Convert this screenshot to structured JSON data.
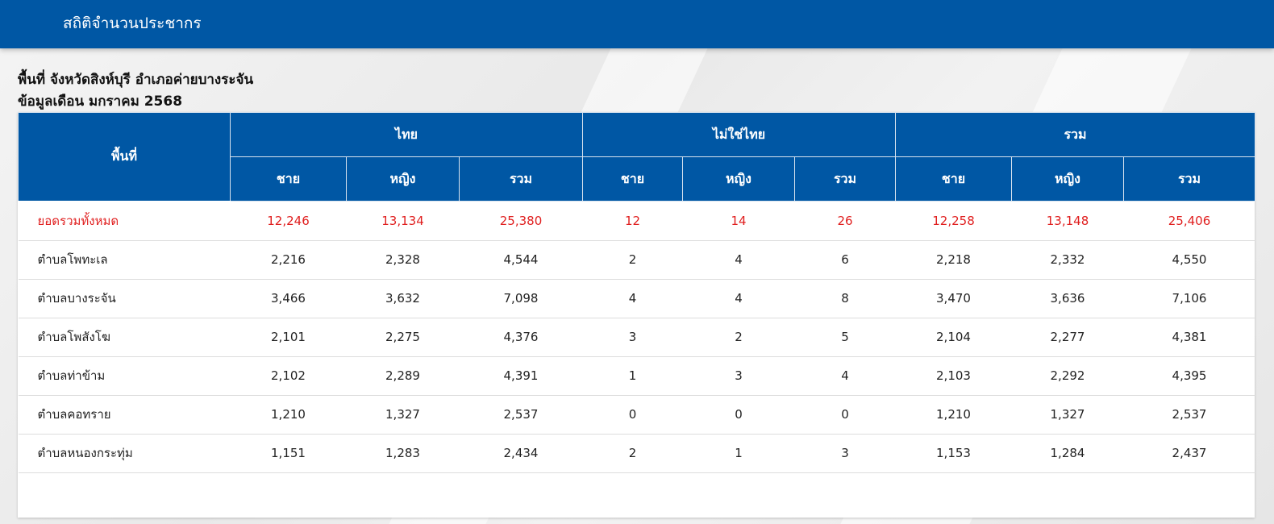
{
  "header": {
    "title": "สถิติจำนวนประชากร",
    "bar_color": "#0057a4"
  },
  "info": {
    "area_line": "พื้นที่ จังหวัดสิงห์บุรี อำเภอค่ายบางระจัน",
    "month_line": "ข้อมูลเดือน มกราคม 2568"
  },
  "table": {
    "area_header": "พื้นที่",
    "groups": [
      "ไทย",
      "ไม่ใช่ไทย",
      "รวม"
    ],
    "subheaders": [
      "ชาย",
      "หญิง",
      "รวม"
    ],
    "total_color": "#e01e1e",
    "rows": [
      {
        "name": "ยอดรวมทั้งหมด",
        "values": [
          "12,246",
          "13,134",
          "25,380",
          "12",
          "14",
          "26",
          "12,258",
          "13,148",
          "25,406"
        ]
      },
      {
        "name": "ตำบลโพทะเล",
        "values": [
          "2,216",
          "2,328",
          "4,544",
          "2",
          "4",
          "6",
          "2,218",
          "2,332",
          "4,550"
        ]
      },
      {
        "name": "ตำบลบางระจัน",
        "values": [
          "3,466",
          "3,632",
          "7,098",
          "4",
          "4",
          "8",
          "3,470",
          "3,636",
          "7,106"
        ]
      },
      {
        "name": "ตำบลโพสังโฆ",
        "values": [
          "2,101",
          "2,275",
          "4,376",
          "3",
          "2",
          "5",
          "2,104",
          "2,277",
          "4,381"
        ]
      },
      {
        "name": "ตำบลท่าข้าม",
        "values": [
          "2,102",
          "2,289",
          "4,391",
          "1",
          "3",
          "4",
          "2,103",
          "2,292",
          "4,395"
        ]
      },
      {
        "name": "ตำบลคอทราย",
        "values": [
          "1,210",
          "1,327",
          "2,537",
          "0",
          "0",
          "0",
          "1,210",
          "1,327",
          "2,537"
        ]
      },
      {
        "name": "ตำบลหนองกระทุ่ม",
        "values": [
          "1,151",
          "1,283",
          "2,434",
          "2",
          "1",
          "3",
          "1,153",
          "1,284",
          "2,437"
        ]
      }
    ]
  }
}
